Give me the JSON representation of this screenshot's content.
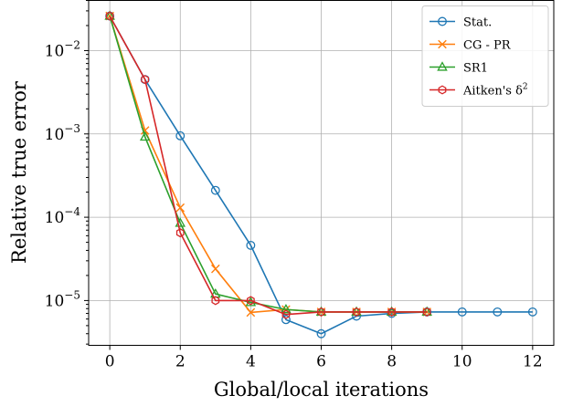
{
  "chart_data": {
    "type": "line",
    "xlabel": "Global/local iterations",
    "ylabel": "Relative true error",
    "xlim": [
      -0.6,
      12.6
    ],
    "ylim": [
      2.9e-06,
      0.04
    ],
    "yscale": "log",
    "grid": true,
    "legend_position": "top-right",
    "x_ticks": [
      0,
      2,
      4,
      6,
      8,
      10,
      12
    ],
    "x_tick_labels": [
      "0",
      "2",
      "4",
      "6",
      "8",
      "10",
      "12"
    ],
    "y_ticks": [
      1e-05,
      0.0001,
      0.001,
      0.01
    ],
    "y_tick_bases": [
      "10",
      "10",
      "10",
      "10"
    ],
    "y_tick_exponents": [
      "−5",
      "−4",
      "−3",
      "−2"
    ],
    "series": [
      {
        "name": "Stat.",
        "marker": "circle",
        "color": "#1f77b4",
        "x": [
          0,
          1,
          2,
          3,
          4,
          5,
          6,
          7,
          8,
          9,
          10,
          11,
          12
        ],
        "y": [
          0.026,
          0.0045,
          0.00095,
          0.00021,
          4.6e-05,
          5.9e-06,
          4e-06,
          6.5e-06,
          7e-06,
          7.3e-06,
          7.3e-06,
          7.3e-06,
          7.3e-06
        ]
      },
      {
        "name": "CG - PR",
        "marker": "x",
        "color": "#ff7f0e",
        "x": [
          0,
          1,
          2,
          3,
          4,
          5,
          6,
          7,
          8,
          9
        ],
        "y": [
          0.026,
          0.0011,
          0.00013,
          2.4e-05,
          7.2e-06,
          7.8e-06,
          7.3e-06,
          7.3e-06,
          7.3e-06,
          7.3e-06
        ]
      },
      {
        "name": "SR1",
        "marker": "triangle",
        "color": "#2ca02c",
        "x": [
          0,
          1,
          2,
          3,
          4,
          5,
          6,
          7,
          8,
          9
        ],
        "y": [
          0.026,
          0.00092,
          8.5e-05,
          1.2e-05,
          9.5e-06,
          7.8e-06,
          7.3e-06,
          7.3e-06,
          7.3e-06,
          7.3e-06
        ]
      },
      {
        "name_prefix": "Aitken's δ",
        "name_superscript": "2",
        "marker": "hexagon",
        "color": "#d62728",
        "x": [
          0,
          1,
          2,
          3,
          4,
          5,
          6,
          7,
          8,
          9
        ],
        "y": [
          0.026,
          0.0045,
          6.5e-05,
          1e-05,
          1e-05,
          6.8e-06,
          7.3e-06,
          7.3e-06,
          7.3e-06,
          7.3e-06
        ]
      }
    ]
  }
}
